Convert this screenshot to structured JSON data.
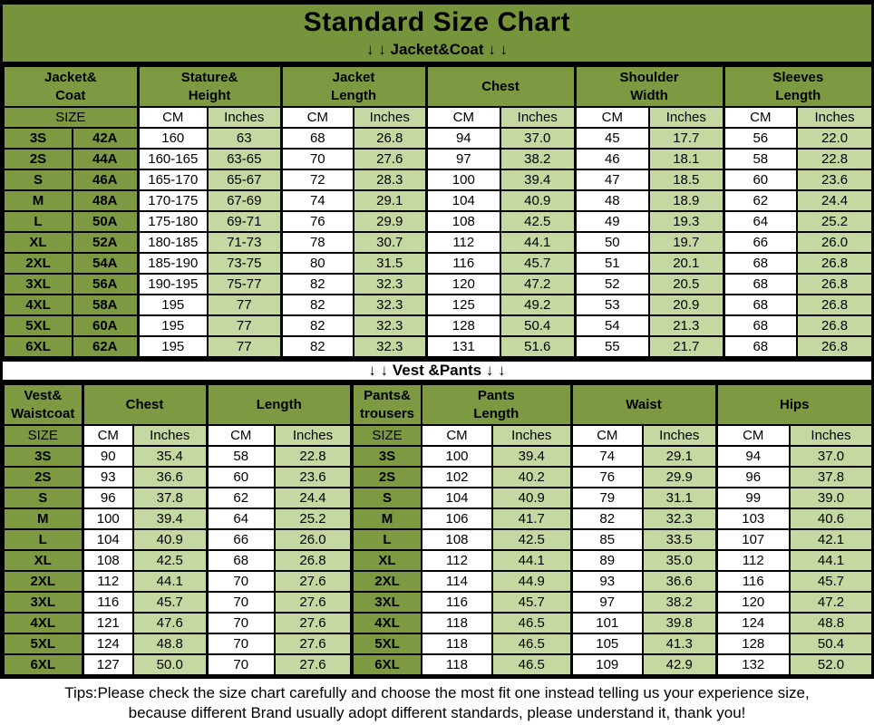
{
  "title": "Standard Size Chart",
  "units": {
    "cm": "CM",
    "inches": "Inches"
  },
  "section_jacket": {
    "banner": "↓ ↓  Jacket&Coat ↓ ↓",
    "size_header": "SIZE",
    "groups": {
      "jacket_coat": "Jacket&\nCoat",
      "stature_height": "Stature&\nHeight",
      "jacket_length": "Jacket\nLength",
      "chest": "Chest",
      "shoulder_width": "Shoulder\nWidth",
      "sleeves_length": "Sleeves\nLength"
    },
    "rows": [
      [
        "3S",
        "42A",
        "160",
        "63",
        "68",
        "26.8",
        "94",
        "37.0",
        "45",
        "17.7",
        "56",
        "22.0"
      ],
      [
        "2S",
        "44A",
        "160-165",
        "63-65",
        "70",
        "27.6",
        "97",
        "38.2",
        "46",
        "18.1",
        "58",
        "22.8"
      ],
      [
        "S",
        "46A",
        "165-170",
        "65-67",
        "72",
        "28.3",
        "100",
        "39.4",
        "47",
        "18.5",
        "60",
        "23.6"
      ],
      [
        "M",
        "48A",
        "170-175",
        "67-69",
        "74",
        "29.1",
        "104",
        "40.9",
        "48",
        "18.9",
        "62",
        "24.4"
      ],
      [
        "L",
        "50A",
        "175-180",
        "69-71",
        "76",
        "29.9",
        "108",
        "42.5",
        "49",
        "19.3",
        "64",
        "25.2"
      ],
      [
        "XL",
        "52A",
        "180-185",
        "71-73",
        "78",
        "30.7",
        "112",
        "44.1",
        "50",
        "19.7",
        "66",
        "26.0"
      ],
      [
        "2XL",
        "54A",
        "185-190",
        "73-75",
        "80",
        "31.5",
        "116",
        "45.7",
        "51",
        "20.1",
        "68",
        "26.8"
      ],
      [
        "3XL",
        "56A",
        "190-195",
        "75-77",
        "82",
        "32.3",
        "120",
        "47.2",
        "52",
        "20.5",
        "68",
        "26.8"
      ],
      [
        "4XL",
        "58A",
        "195",
        "77",
        "82",
        "32.3",
        "125",
        "49.2",
        "53",
        "20.9",
        "68",
        "26.8"
      ],
      [
        "5XL",
        "60A",
        "195",
        "77",
        "82",
        "32.3",
        "128",
        "50.4",
        "54",
        "21.3",
        "68",
        "26.8"
      ],
      [
        "6XL",
        "62A",
        "195",
        "77",
        "82",
        "32.3",
        "131",
        "51.6",
        "55",
        "21.7",
        "68",
        "26.8"
      ]
    ]
  },
  "section_vest": {
    "banner": "↓ ↓  Vest &Pants ↓ ↓",
    "size_header": "SIZE",
    "groups": {
      "vest_waistcoat": "Vest&\nWaistcoat",
      "chest": "Chest",
      "length": "Length",
      "pants_trousers": "Pants&\ntrousers",
      "pants_length": "Pants\nLength",
      "waist": "Waist",
      "hips": "Hips"
    },
    "rows": [
      [
        "3S",
        "90",
        "35.4",
        "58",
        "22.8",
        "3S",
        "100",
        "39.4",
        "74",
        "29.1",
        "94",
        "37.0"
      ],
      [
        "2S",
        "93",
        "36.6",
        "60",
        "23.6",
        "2S",
        "102",
        "40.2",
        "76",
        "29.9",
        "96",
        "37.8"
      ],
      [
        "S",
        "96",
        "37.8",
        "62",
        "24.4",
        "S",
        "104",
        "40.9",
        "79",
        "31.1",
        "99",
        "39.0"
      ],
      [
        "M",
        "100",
        "39.4",
        "64",
        "25.2",
        "M",
        "106",
        "41.7",
        "82",
        "32.3",
        "103",
        "40.6"
      ],
      [
        "L",
        "104",
        "40.9",
        "66",
        "26.0",
        "L",
        "108",
        "42.5",
        "85",
        "33.5",
        "107",
        "42.1"
      ],
      [
        "XL",
        "108",
        "42.5",
        "68",
        "26.8",
        "XL",
        "112",
        "44.1",
        "89",
        "35.0",
        "112",
        "44.1"
      ],
      [
        "2XL",
        "112",
        "44.1",
        "70",
        "27.6",
        "2XL",
        "114",
        "44.9",
        "93",
        "36.6",
        "116",
        "45.7"
      ],
      [
        "3XL",
        "116",
        "45.7",
        "70",
        "27.6",
        "3XL",
        "116",
        "45.7",
        "97",
        "38.2",
        "120",
        "47.2"
      ],
      [
        "4XL",
        "121",
        "47.6",
        "70",
        "27.6",
        "4XL",
        "118",
        "46.5",
        "101",
        "39.8",
        "124",
        "48.8"
      ],
      [
        "5XL",
        "124",
        "48.8",
        "70",
        "27.6",
        "5XL",
        "118",
        "46.5",
        "105",
        "41.3",
        "128",
        "50.4"
      ],
      [
        "6XL",
        "127",
        "50.0",
        "70",
        "27.6",
        "6XL",
        "118",
        "46.5",
        "109",
        "42.9",
        "132",
        "52.0"
      ]
    ]
  },
  "colors": {
    "dark_green": "#7d9a43",
    "light_green": "#c6d8a1",
    "border": "#000000",
    "background": "#ffffff"
  },
  "tips": {
    "line1": "Tips:Please check the size chart carefully and choose the most fit one instead telling us your experience size,",
    "line2": "because different Brand usually adopt different standards, please understand it, thank you!"
  }
}
